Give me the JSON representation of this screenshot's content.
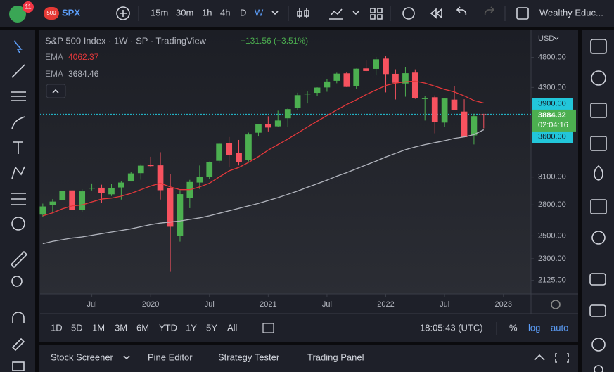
{
  "top_toolbar": {
    "badge": "11",
    "symbol_badge": "500",
    "symbol": "SPX",
    "intervals": [
      "15m",
      "30m",
      "1h",
      "4h",
      "D",
      "W"
    ],
    "account": "Wealthy Educ..."
  },
  "legend": {
    "title": "S&P 500 Index · 1W · SP · TradingView",
    "change": "+131.56 (+3.51%)"
  },
  "price_axis": {
    "currency": "USD",
    "countdown": "02:04:16"
  },
  "range_bar": {
    "ranges": [
      "1D",
      "5D",
      "1M",
      "3M",
      "6M",
      "YTD",
      "1Y",
      "5Y",
      "All"
    ],
    "time": "18:05:43 (UTC)",
    "percent": "%",
    "log": "log",
    "auto": "auto"
  },
  "bottom_panel": {
    "tabs": [
      "Stock Screener",
      "Pine Editor",
      "Strategy Tester",
      "Trading Panel"
    ]
  },
  "chart_data": {
    "type": "candlestick",
    "log_scale": true,
    "up_color": "#4caf50",
    "down_color": "#f7525f",
    "x": [
      2019.083,
      2019.167,
      2019.25,
      2019.333,
      2019.417,
      2019.5,
      2019.583,
      2019.667,
      2019.75,
      2019.833,
      2019.917,
      2020,
      2020.083,
      2020.167,
      2020.25,
      2020.333,
      2020.417,
      2020.5,
      2020.583,
      2020.667,
      2020.75,
      2020.833,
      2020.917,
      2021,
      2021.083,
      2021.167,
      2021.25,
      2021.333,
      2021.417,
      2021.5,
      2021.583,
      2021.667,
      2021.75,
      2021.833,
      2021.917,
      2022,
      2022.083,
      2022.167,
      2022.25,
      2022.333,
      2022.417,
      2022.5,
      2022.583,
      2022.667,
      2022.75,
      2022.833
    ],
    "open": [
      2702,
      2798,
      2848,
      2952,
      2751,
      2971,
      2981,
      2910,
      2984,
      3050,
      3144,
      3244,
      3235,
      2974,
      2499,
      2870,
      3038,
      3105,
      3289,
      3507,
      3385,
      3296,
      3645,
      3764,
      3731,
      3842,
      3992,
      4192,
      4216,
      4300,
      4406,
      4528,
      4318,
      4610,
      4602,
      4778,
      4520,
      4363,
      4540,
      4130,
      4149,
      3782,
      4113,
      3937,
      3610,
      3898
    ],
    "high": [
      2813,
      2860,
      2949,
      2954,
      2964,
      3028,
      3014,
      3022,
      3050,
      3154,
      3248,
      3338,
      3394,
      3137,
      2954,
      3068,
      3233,
      3280,
      3514,
      3588,
      3550,
      3646,
      3760,
      3870,
      3950,
      3995,
      4218,
      4238,
      4302,
      4430,
      4538,
      4546,
      4608,
      4744,
      4808,
      4819,
      4595,
      4637,
      4594,
      4170,
      4177,
      4140,
      4325,
      4119,
      3906,
      3906
    ],
    "low": [
      2681,
      2722,
      2848,
      2751,
      2729,
      2952,
      2822,
      2892,
      2855,
      3050,
      3070,
      3215,
      2855,
      2192,
      2448,
      2767,
      2966,
      3075,
      3263,
      3210,
      3234,
      3280,
      3595,
      3662,
      3725,
      3723,
      3955,
      4056,
      4164,
      4233,
      4367,
      4306,
      4279,
      4560,
      4495,
      4223,
      4115,
      4157,
      4124,
      3811,
      3637,
      3721,
      3955,
      3584,
      3492,
      3704
    ],
    "close": [
      2784,
      2834,
      2946,
      2752,
      2942,
      2980,
      2926,
      2977,
      3038,
      3141,
      3231,
      3226,
      2954,
      2585,
      2912,
      3044,
      3100,
      3271,
      3500,
      3363,
      3270,
      3622,
      3756,
      3714,
      3811,
      3973,
      4181,
      4204,
      4298,
      4395,
      4523,
      4308,
      4605,
      4567,
      4766,
      4516,
      4374,
      4530,
      4132,
      4132,
      3785,
      4130,
      3955,
      3586,
      3872,
      3884.32
    ],
    "series": [
      {
        "name": "EMA",
        "color": "#e5383b",
        "values": [
          2690,
          2720,
          2760,
          2790,
          2800,
          2830,
          2860,
          2870,
          2890,
          2920,
          2960,
          3000,
          3030,
          2990,
          2960,
          2960,
          2990,
          3030,
          3100,
          3170,
          3210,
          3270,
          3340,
          3420,
          3490,
          3560,
          3640,
          3720,
          3800,
          3880,
          3960,
          4040,
          4110,
          4190,
          4260,
          4330,
          4370,
          4390,
          4400,
          4370,
          4320,
          4270,
          4230,
          4170,
          4100,
          4062.37
        ]
      },
      {
        "name": "EMA",
        "color": "#b2b5be",
        "values": [
          2430,
          2450,
          2465,
          2480,
          2490,
          2505,
          2520,
          2535,
          2550,
          2565,
          2585,
          2605,
          2620,
          2630,
          2640,
          2655,
          2670,
          2690,
          2715,
          2740,
          2765,
          2790,
          2815,
          2845,
          2875,
          2910,
          2945,
          2985,
          3025,
          3065,
          3110,
          3150,
          3195,
          3240,
          3285,
          3335,
          3380,
          3425,
          3460,
          3490,
          3515,
          3540,
          3570,
          3590,
          3620,
          3684.46
        ]
      }
    ],
    "hlines": [
      {
        "value": 3900,
        "label": "3900.00",
        "color": "#22c6da"
      },
      {
        "value": 3600,
        "label": "3600.00",
        "color": "#22c6da"
      }
    ],
    "xlim": [
      2019.06,
      2023.235
    ],
    "xticks": [
      {
        "value": 2019.5,
        "label": "Jul"
      },
      2020,
      {
        "value": 2020.5,
        "label": "Jul"
      },
      2021,
      {
        "value": 2021.5,
        "label": "Jul"
      },
      2022,
      {
        "value": 2022.5,
        "label": "Jul"
      },
      2023
    ],
    "ylim": [
      2022,
      5300
    ],
    "yticks": [
      {
        "value": 4800,
        "label": "4800.00"
      },
      {
        "value": 4300,
        "label": "4300.00"
      },
      {
        "value": 3100,
        "label": "3100.00"
      },
      {
        "value": 2800,
        "label": "2800.00"
      },
      {
        "value": 2500,
        "label": "2500.00"
      },
      {
        "value": 2300,
        "label": "2300.00"
      },
      {
        "value": 2125,
        "label": "2125.00"
      }
    ]
  }
}
